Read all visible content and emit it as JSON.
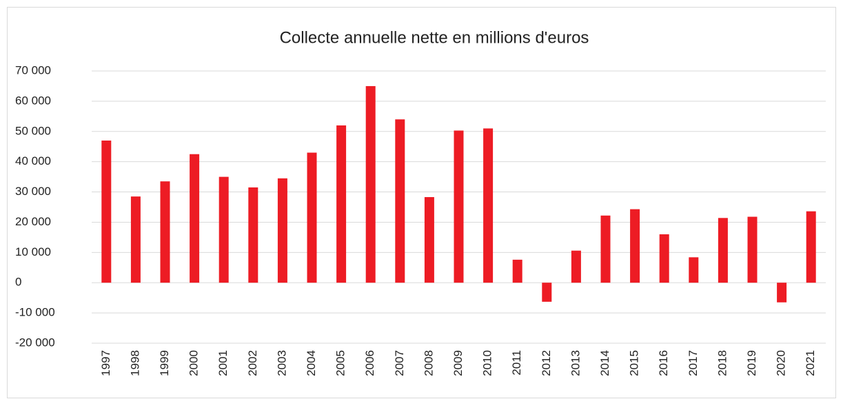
{
  "chart_data": {
    "type": "bar",
    "title": "Collecte annuelle nette en millions d'euros",
    "categories": [
      "1997",
      "1998",
      "1999",
      "2000",
      "2001",
      "2002",
      "2003",
      "2004",
      "2005",
      "2006",
      "2007",
      "2008",
      "2009",
      "2010",
      "2011",
      "2012",
      "2013",
      "2014",
      "2015",
      "2016",
      "2017",
      "2018",
      "2019",
      "2020",
      "2021"
    ],
    "values": [
      47000,
      28500,
      33500,
      42500,
      35000,
      31500,
      34500,
      43000,
      52000,
      65000,
      54000,
      28300,
      50300,
      51000,
      7600,
      -6300,
      10600,
      22200,
      24300,
      16000,
      8400,
      21400,
      21800,
      -6500,
      23600
    ],
    "color": "#ed1c24",
    "ylim": [
      -20000,
      70000
    ],
    "yticks": [
      {
        "value": -20000,
        "label": "-20 000"
      },
      {
        "value": -10000,
        "label": "-10 000"
      },
      0,
      {
        "value": 10000,
        "label": "10 000"
      },
      {
        "value": 20000,
        "label": "20 000"
      },
      {
        "value": 30000,
        "label": "30 000"
      },
      {
        "value": 40000,
        "label": "40 000"
      },
      {
        "value": 50000,
        "label": "50 000"
      },
      {
        "value": 60000,
        "label": "60 000"
      },
      {
        "value": 70000,
        "label": "70 000"
      }
    ],
    "grid": true
  }
}
